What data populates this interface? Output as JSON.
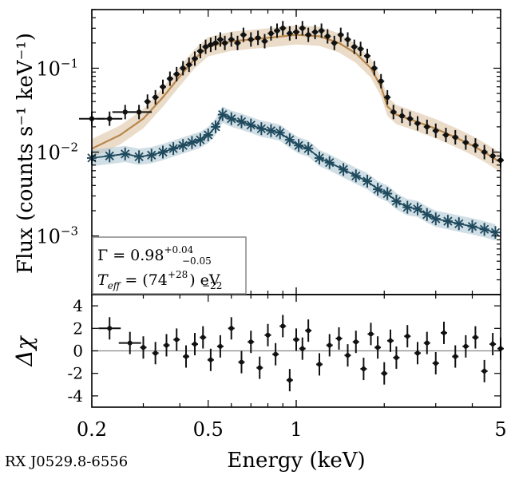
{
  "source_label": "RX J0529.8-6556",
  "chart_data": [
    {
      "type": "scatter",
      "panel": "top",
      "xscale": "log",
      "yscale": "log",
      "xlim": [
        0.2,
        5
      ],
      "ylim": [
        0.0002,
        0.5
      ],
      "ylabel": "Flux (counts s⁻¹ keV⁻¹)",
      "yticks": [
        {
          "value": 0.1,
          "base": "10",
          "exp": "−1"
        },
        {
          "value": 0.01,
          "base": "10",
          "exp": "−2"
        },
        {
          "value": 0.001,
          "base": "10",
          "exp": "−3"
        }
      ],
      "legend_position": "bottom-left",
      "legend": {
        "line1_prefix": "Γ = 0.98",
        "line1_sup": "+0.04",
        "line1_sub": "−0.05",
        "line2_prefix": "T",
        "line2_sub_var": "eff",
        "line2_mid": " = (74",
        "line2_sup": "+28",
        "line2_sub": "−22",
        "line2_suffix": ") eV"
      },
      "colors": {
        "data": "#111111",
        "model": "#b8864a",
        "model_band": "#d9bf9d",
        "component": "#1f4a5e",
        "component_band": "#a9c3cf"
      },
      "series": [
        {
          "name": "data",
          "x": [
            0.2,
            0.23,
            0.26,
            0.29,
            0.31,
            0.33,
            0.35,
            0.37,
            0.39,
            0.41,
            0.43,
            0.45,
            0.47,
            0.49,
            0.51,
            0.53,
            0.55,
            0.57,
            0.6,
            0.63,
            0.66,
            0.7,
            0.74,
            0.78,
            0.82,
            0.86,
            0.9,
            0.95,
            1.0,
            1.05,
            1.1,
            1.16,
            1.22,
            1.28,
            1.35,
            1.42,
            1.5,
            1.58,
            1.66,
            1.75,
            1.85,
            1.95,
            2.05,
            2.15,
            2.3,
            2.45,
            2.6,
            2.8,
            3.0,
            3.25,
            3.5,
            3.8,
            4.1,
            4.4,
            4.7,
            5.0
          ],
          "y": [
            0.025,
            0.025,
            0.03,
            0.03,
            0.04,
            0.045,
            0.06,
            0.075,
            0.085,
            0.1,
            0.11,
            0.13,
            0.16,
            0.18,
            0.19,
            0.2,
            0.22,
            0.2,
            0.22,
            0.2,
            0.25,
            0.22,
            0.23,
            0.21,
            0.26,
            0.28,
            0.3,
            0.26,
            0.27,
            0.3,
            0.25,
            0.27,
            0.28,
            0.24,
            0.2,
            0.25,
            0.22,
            0.18,
            0.17,
            0.14,
            0.1,
            0.07,
            0.045,
            0.03,
            0.027,
            0.025,
            0.022,
            0.02,
            0.018,
            0.016,
            0.015,
            0.013,
            0.012,
            0.01,
            0.009,
            0.008
          ]
        },
        {
          "name": "model",
          "x": [
            0.2,
            0.25,
            0.3,
            0.35,
            0.4,
            0.45,
            0.5,
            0.6,
            0.7,
            0.8,
            0.9,
            1.0,
            1.2,
            1.4,
            1.6,
            1.8,
            1.95,
            2.05,
            2.2,
            2.5,
            3.0,
            3.5,
            4.0,
            4.5,
            5.0
          ],
          "y": [
            0.011,
            0.016,
            0.025,
            0.045,
            0.08,
            0.13,
            0.18,
            0.21,
            0.22,
            0.23,
            0.24,
            0.25,
            0.24,
            0.2,
            0.15,
            0.1,
            0.06,
            0.035,
            0.028,
            0.024,
            0.019,
            0.015,
            0.012,
            0.0095,
            0.0075
          ]
        },
        {
          "name": "blackbody component",
          "x": [
            0.2,
            0.23,
            0.26,
            0.29,
            0.32,
            0.35,
            0.38,
            0.41,
            0.44,
            0.47,
            0.5,
            0.53,
            0.56,
            0.6,
            0.65,
            0.7,
            0.76,
            0.82,
            0.88,
            0.95,
            1.02,
            1.1,
            1.2,
            1.3,
            1.45,
            1.6,
            1.75,
            1.9,
            2.05,
            2.2,
            2.4,
            2.6,
            2.8,
            3.0,
            3.3,
            3.6,
            4.0,
            4.4,
            4.8
          ],
          "y": [
            0.0085,
            0.009,
            0.0095,
            0.0088,
            0.0092,
            0.01,
            0.011,
            0.012,
            0.013,
            0.014,
            0.016,
            0.02,
            0.028,
            0.025,
            0.023,
            0.021,
            0.019,
            0.018,
            0.017,
            0.014,
            0.012,
            0.011,
            0.0085,
            0.0075,
            0.0062,
            0.0052,
            0.0045,
            0.0036,
            0.0032,
            0.0026,
            0.0022,
            0.0021,
            0.0018,
            0.0016,
            0.0015,
            0.0014,
            0.0013,
            0.0012,
            0.0011
          ]
        }
      ]
    },
    {
      "type": "scatter",
      "panel": "bottom",
      "xscale": "log",
      "xlim": [
        0.2,
        5
      ],
      "ylim": [
        -5,
        5
      ],
      "xlabel": "Energy (keV)",
      "ylabel": "Δχ",
      "xticks": [
        {
          "value": 0.2,
          "label": "0.2"
        },
        {
          "value": 0.5,
          "label": "0.5"
        },
        {
          "value": 1,
          "label": "1"
        },
        {
          "value": 5,
          "label": "5"
        }
      ],
      "yticks": [
        {
          "value": 4,
          "label": "4"
        },
        {
          "value": 2,
          "label": "2"
        },
        {
          "value": 0,
          "label": "0"
        },
        {
          "value": -2,
          "label": "-2"
        },
        {
          "value": -4,
          "label": "-4"
        }
      ],
      "series": [
        {
          "name": "residuals",
          "x": [
            0.23,
            0.27,
            0.3,
            0.33,
            0.36,
            0.39,
            0.42,
            0.45,
            0.48,
            0.51,
            0.55,
            0.6,
            0.65,
            0.7,
            0.75,
            0.8,
            0.85,
            0.9,
            0.95,
            1.0,
            1.05,
            1.1,
            1.2,
            1.3,
            1.4,
            1.5,
            1.6,
            1.7,
            1.8,
            1.9,
            2.0,
            2.1,
            2.2,
            2.4,
            2.6,
            2.8,
            3.0,
            3.2,
            3.5,
            3.8,
            4.1,
            4.4,
            4.7,
            5.0
          ],
          "y": [
            2.0,
            0.7,
            0.3,
            -0.2,
            0.5,
            1.0,
            -0.5,
            0.6,
            1.2,
            -0.8,
            0.4,
            2.0,
            -1.0,
            0.8,
            -1.5,
            1.4,
            -0.3,
            2.2,
            -2.6,
            1.0,
            0.2,
            1.8,
            -1.2,
            0.5,
            1.1,
            -0.4,
            0.8,
            -1.6,
            1.5,
            0.3,
            -2.0,
            0.9,
            -0.6,
            1.3,
            -0.2,
            0.7,
            -1.1,
            1.6,
            -0.5,
            0.4,
            1.2,
            -1.8,
            0.6,
            0.2
          ]
        }
      ]
    }
  ]
}
